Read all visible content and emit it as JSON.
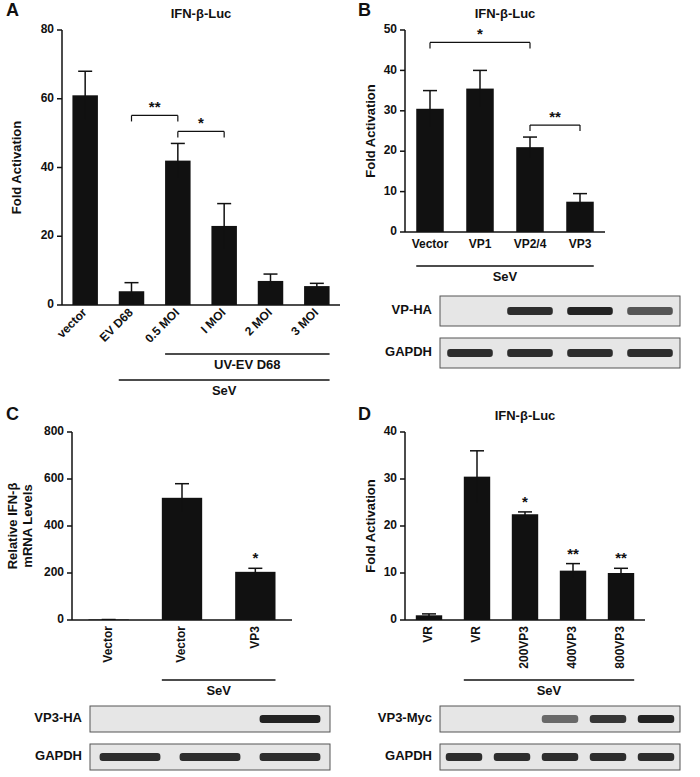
{
  "chart_data": [
    {
      "type": "bar",
      "annotations": [
        "A"
      ],
      "title": "IFN-β-Luc",
      "ylabel": "Fold Activation",
      "categories": [
        "vector",
        "EV D68",
        "0.5 MOI",
        "I MOI",
        "2 MOI",
        "3 MOI"
      ],
      "values": [
        61,
        4,
        42,
        23,
        7,
        5.5
      ],
      "errors": [
        7,
        2.5,
        5,
        6.5,
        2,
        0.8
      ],
      "color": "#111111",
      "ylim": [
        0,
        80
      ],
      "yticks": [
        0,
        20,
        40,
        60,
        80
      ],
      "grid": false,
      "groups": [
        {
          "label": "UV-EV D68",
          "from": 2,
          "to": 5
        },
        {
          "label": "SeV",
          "from": 1,
          "to": 5
        }
      ],
      "significance": [
        {
          "label": "**",
          "from": 1,
          "to": 2
        },
        {
          "label": "*",
          "from": 2,
          "to": 3
        }
      ]
    },
    {
      "type": "bar",
      "annotations": [
        "B"
      ],
      "title": "IFN-β-Luc",
      "ylabel": "Fold Activation",
      "categories": [
        "Vector",
        "VP1",
        "VP2/4",
        "VP3"
      ],
      "values": [
        30.5,
        35.5,
        21,
        7.5
      ],
      "errors": [
        4.5,
        4.5,
        2.5,
        2
      ],
      "color": "#111111",
      "ylim": [
        0,
        50
      ],
      "yticks": [
        0,
        10,
        20,
        30,
        40,
        50
      ],
      "grid": false,
      "groups": [
        {
          "label": "SeV",
          "from": 0,
          "to": 3
        }
      ],
      "significance": [
        {
          "label": "*",
          "from": 0,
          "to": 2
        },
        {
          "label": "**",
          "from": 2,
          "to": 3
        }
      ],
      "blot": {
        "rows": [
          {
            "label": "VP-HA",
            "bands": [
              0,
              0.9,
              0.95,
              0.7
            ]
          },
          {
            "label": "GAPDH",
            "bands": [
              0.9,
              0.9,
              0.9,
              0.9
            ]
          }
        ]
      }
    },
    {
      "type": "bar",
      "annotations": [
        "C"
      ],
      "ylabel": [
        "Relative IFN-β",
        "mRNA Levels"
      ],
      "categories": [
        "Vector",
        "Vector",
        "VP3"
      ],
      "values": [
        2,
        520,
        205
      ],
      "errors": [
        0,
        60,
        15
      ],
      "color": "#111111",
      "ylim": [
        0,
        800
      ],
      "yticks": [
        0,
        200,
        400,
        600,
        800
      ],
      "grid": false,
      "groups": [
        {
          "label": "SeV",
          "from": 1,
          "to": 2
        }
      ],
      "significance": [
        {
          "label": "*",
          "from": 2,
          "to": 2
        }
      ],
      "blot": {
        "rows": [
          {
            "label": "VP3-HA",
            "bands": [
              0,
              0,
              0.95
            ]
          },
          {
            "label": "GAPDH",
            "bands": [
              0.9,
              0.9,
              0.9
            ]
          }
        ]
      }
    },
    {
      "type": "bar",
      "annotations": [
        "D"
      ],
      "title": "IFN-β-Luc",
      "ylabel": "Fold Activation",
      "categories": [
        "VR",
        "VR",
        "200VP3",
        "400VP3",
        "800VP3"
      ],
      "values": [
        1,
        30.5,
        22.5,
        10.5,
        10
      ],
      "errors": [
        0.3,
        5.5,
        0.5,
        1.5,
        1
      ],
      "color": "#111111",
      "ylim": [
        0,
        40
      ],
      "yticks": [
        0,
        10,
        20,
        30,
        40
      ],
      "grid": false,
      "groups": [
        {
          "label": "SeV",
          "from": 1,
          "to": 4
        }
      ],
      "significance": [
        {
          "label": "*",
          "from": 2,
          "to": 2
        },
        {
          "label": "**",
          "from": 3,
          "to": 3
        },
        {
          "label": "**",
          "from": 4,
          "to": 4
        }
      ],
      "blot": {
        "rows": [
          {
            "label": "VP3-Myc",
            "bands": [
              0,
              0,
              0.6,
              0.85,
              0.95
            ]
          },
          {
            "label": "GAPDH",
            "bands": [
              0.9,
              0.9,
              0.9,
              0.9,
              0.9
            ]
          }
        ]
      }
    }
  ]
}
